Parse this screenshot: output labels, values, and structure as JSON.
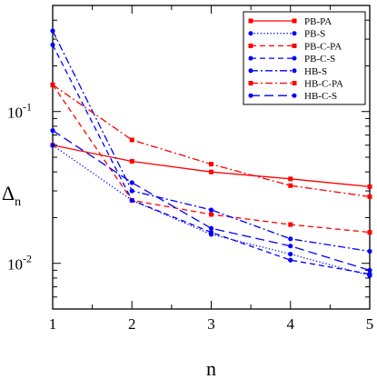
{
  "chart_data": {
    "type": "line",
    "title": "",
    "xlabel": "n",
    "ylabel": "Δ",
    "ylabel_subscript": "n",
    "yscale": "log",
    "xlim": [
      1,
      5
    ],
    "ylim": [
      0.005,
      0.5
    ],
    "x_ticks": [
      "1",
      "2",
      "3",
      "4",
      "5"
    ],
    "y_tick_labels": [
      {
        "value": 0.1,
        "base": "10",
        "exp": "-1"
      },
      {
        "value": 0.01,
        "base": "10",
        "exp": "-2"
      }
    ],
    "grid": false,
    "legend_position": "top-right",
    "x": [
      1,
      2,
      3,
      4,
      5
    ],
    "series": [
      {
        "name": "PB-PA",
        "color": "#ff0000",
        "dash": "solid",
        "marker": "square",
        "values": [
          0.06,
          0.047,
          0.04,
          0.036,
          0.032
        ]
      },
      {
        "name": "PB-S",
        "color": "#0000ff",
        "dash": "dotted",
        "marker": "circle",
        "values": [
          0.06,
          0.026,
          0.0155,
          0.0115,
          0.0083
        ]
      },
      {
        "name": "PB-C-PA",
        "color": "#ff0000",
        "dash": "dashed",
        "marker": "square",
        "values": [
          0.15,
          0.026,
          0.021,
          0.018,
          0.016
        ]
      },
      {
        "name": "PB-C-S",
        "color": "#0000ff",
        "dash": "dashed",
        "marker": "circle",
        "values": [
          0.275,
          0.026,
          0.016,
          0.0105,
          0.0085
        ]
      },
      {
        "name": "HB-S",
        "color": "#0000ff",
        "dash": "dashdot",
        "marker": "circle",
        "values": [
          0.34,
          0.03,
          0.0225,
          0.0145,
          0.012
        ]
      },
      {
        "name": "HB-C-PA",
        "color": "#ff0000",
        "dash": "dashdot",
        "marker": "square",
        "values": [
          0.15,
          0.065,
          0.045,
          0.0325,
          0.0275
        ]
      },
      {
        "name": "HB-C-S",
        "color": "#0000ff",
        "dash": "longdash",
        "marker": "circle",
        "values": [
          0.075,
          0.034,
          0.017,
          0.013,
          0.009
        ]
      }
    ]
  }
}
